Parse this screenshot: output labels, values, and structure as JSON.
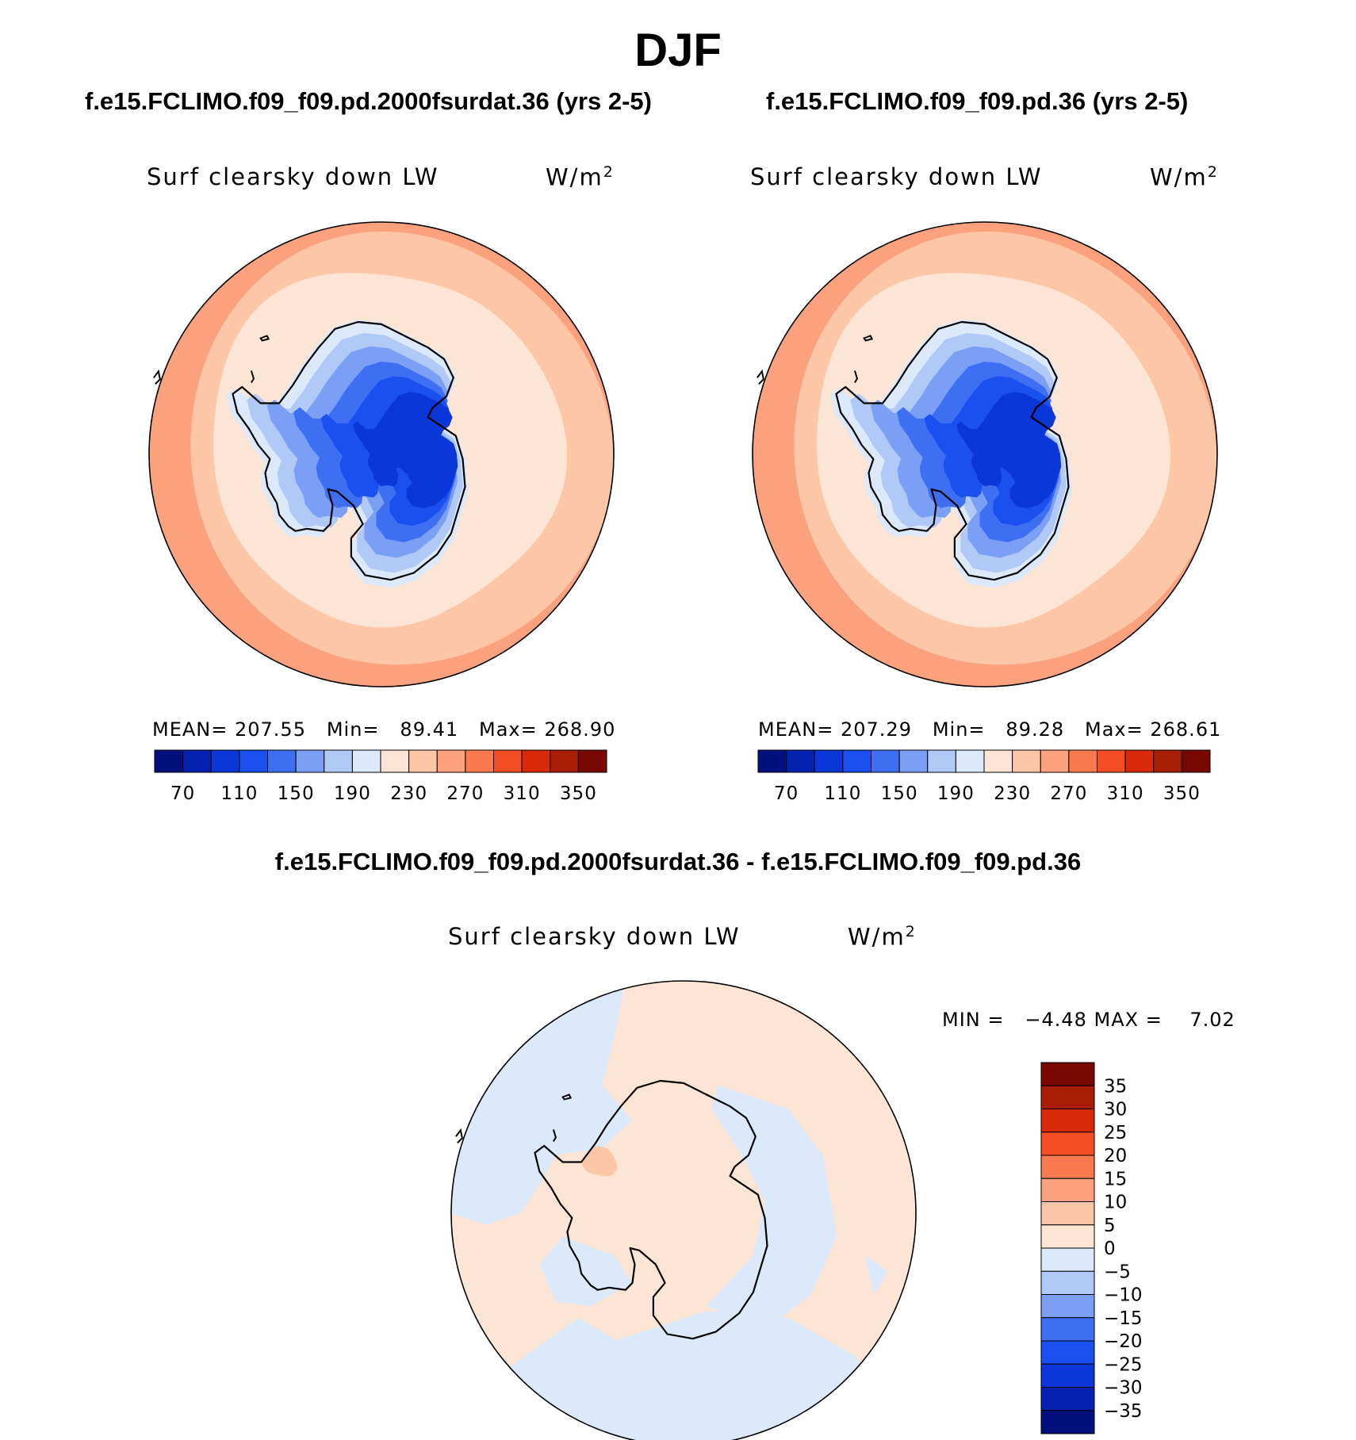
{
  "season": "DJF",
  "panels": [
    {
      "title": "f.e15.FCLIMO.f09_f09.pd.2000fsurdat.36 (yrs 2-5)",
      "variable": "Surf clearsky down LW",
      "units": "W/m",
      "units_exp": "2",
      "stats": "MEAN= 207.55   Min=   89.41   Max= 268.90"
    },
    {
      "title": "f.e15.FCLIMO.f09_f09.pd.36 (yrs 2-5)",
      "variable": "Surf clearsky down LW",
      "units": "W/m",
      "units_exp": "2",
      "stats": "MEAN= 207.29   Min=   89.28   Max= 268.61"
    }
  ],
  "difference": {
    "title": "f.e15.FCLIMO.f09_f09.pd.2000fsurdat.36 - f.e15.FCLIMO.f09_f09.pd.36",
    "variable": "Surf clearsky down LW",
    "units": "W/m",
    "units_exp": "2",
    "stats": "MIN =   −4.48 MAX =    7.02"
  },
  "chart_data": [
    {
      "type": "heatmap",
      "projection": "polar-stereographic-south",
      "title": "f.e15.FCLIMO.f09_f09.pd.2000fsurdat.36 (yrs 2-5)",
      "variable": "Surf clearsky down LW",
      "units": "W/m2",
      "mean": 207.55,
      "min": 89.41,
      "max": 268.9,
      "colorbar_levels": [
        70,
        90,
        110,
        130,
        150,
        170,
        190,
        210,
        230,
        250,
        270,
        290,
        310,
        330,
        350
      ],
      "colorbar_tick_labels": [
        "70",
        "110",
        "150",
        "190",
        "230",
        "270",
        "310",
        "350"
      ],
      "colorbar_colors": [
        "#00107d",
        "#0422b0",
        "#0b37d9",
        "#1a4ff0",
        "#3e6ff2",
        "#7a9ff5",
        "#b0c9f7",
        "#dbe9fb",
        "#fde5d5",
        "#fcc6a7",
        "#fba17d",
        "#f97a4f",
        "#f44d23",
        "#d82a0a",
        "#a91d05",
        "#7a0802"
      ],
      "contour_bands": [
        {
          "level": 250,
          "color": "#fba17d"
        },
        {
          "level": 230,
          "color": "#fcc6a7"
        },
        {
          "level": 210,
          "color": "#fde5d5"
        },
        {
          "level": 190,
          "color": "#dbe9fb"
        },
        {
          "level": 170,
          "color": "#b0c9f7"
        },
        {
          "level": 150,
          "color": "#7a9ff5"
        },
        {
          "level": 130,
          "color": "#3e6ff2"
        },
        {
          "level": 110,
          "color": "#1a4ff0"
        },
        {
          "level": 90,
          "color": "#0b37d9"
        }
      ]
    },
    {
      "type": "heatmap",
      "projection": "polar-stereographic-south",
      "title": "f.e15.FCLIMO.f09_f09.pd.36 (yrs 2-5)",
      "variable": "Surf clearsky down LW",
      "units": "W/m2",
      "mean": 207.29,
      "min": 89.28,
      "max": 268.61,
      "colorbar_levels": [
        70,
        90,
        110,
        130,
        150,
        170,
        190,
        210,
        230,
        250,
        270,
        290,
        310,
        330,
        350
      ],
      "colorbar_tick_labels": [
        "70",
        "110",
        "150",
        "190",
        "230",
        "270",
        "310",
        "350"
      ],
      "colorbar_colors": [
        "#00107d",
        "#0422b0",
        "#0b37d9",
        "#1a4ff0",
        "#3e6ff2",
        "#7a9ff5",
        "#b0c9f7",
        "#dbe9fb",
        "#fde5d5",
        "#fcc6a7",
        "#fba17d",
        "#f97a4f",
        "#f44d23",
        "#d82a0a",
        "#a91d05",
        "#7a0802"
      ],
      "contour_bands": [
        {
          "level": 250,
          "color": "#fba17d"
        },
        {
          "level": 230,
          "color": "#fcc6a7"
        },
        {
          "level": 210,
          "color": "#fde5d5"
        },
        {
          "level": 190,
          "color": "#dbe9fb"
        },
        {
          "level": 170,
          "color": "#b0c9f7"
        },
        {
          "level": 150,
          "color": "#7a9ff5"
        },
        {
          "level": 130,
          "color": "#3e6ff2"
        },
        {
          "level": 110,
          "color": "#1a4ff0"
        },
        {
          "level": 90,
          "color": "#0b37d9"
        }
      ]
    },
    {
      "type": "heatmap",
      "projection": "polar-stereographic-south",
      "title": "f.e15.FCLIMO.f09_f09.pd.2000fsurdat.36 - f.e15.FCLIMO.f09_f09.pd.36",
      "variable": "Surf clearsky down LW",
      "units": "W/m2",
      "min": -4.48,
      "max": 7.02,
      "colorbar_levels": [
        35,
        30,
        25,
        20,
        15,
        10,
        5,
        0,
        -5,
        -10,
        -15,
        -20,
        -25,
        -30,
        -35
      ],
      "colorbar_tick_labels": [
        "35",
        "30",
        "25",
        "20",
        "15",
        "10",
        "5",
        "0",
        "−5",
        "−10",
        "−15",
        "−20",
        "−25",
        "−30",
        "−35"
      ],
      "colorbar_colors": [
        "#7a0802",
        "#a91d05",
        "#d82a0a",
        "#f44d23",
        "#f97a4f",
        "#fba17d",
        "#fcc6a7",
        "#fde5d5",
        "#dbe9fb",
        "#b0c9f7",
        "#7a9ff5",
        "#3e6ff2",
        "#1a4ff0",
        "#0b37d9",
        "#0422b0",
        "#00107d"
      ],
      "dominant_bands": [
        {
          "range": "0 to 5",
          "color": "#fde5d5"
        },
        {
          "range": "-5 to 0",
          "color": "#dbe9fb"
        },
        {
          "range": "5 to 10",
          "color": "#fcc6a7"
        }
      ]
    }
  ]
}
